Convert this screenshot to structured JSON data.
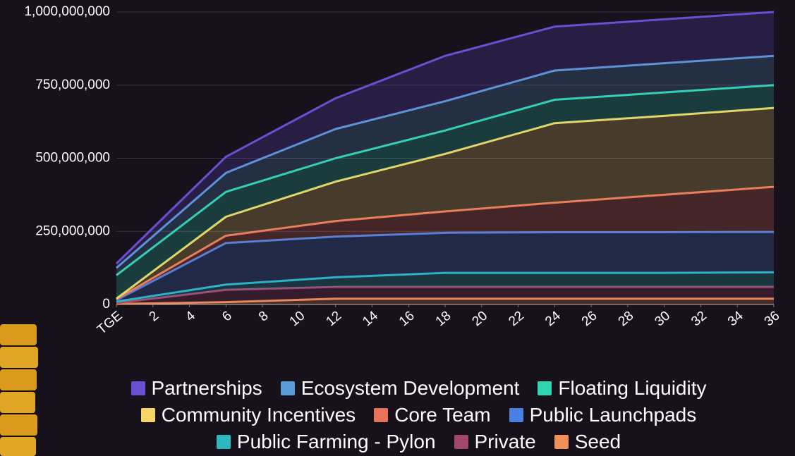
{
  "chart_data": {
    "type": "stacked_area",
    "x": [
      0,
      6,
      12,
      18,
      24,
      30,
      36
    ],
    "xlim": [
      0,
      36
    ],
    "xticks": [
      {
        "value": 0,
        "label": "TGE"
      },
      2,
      4,
      6,
      8,
      10,
      12,
      14,
      16,
      18,
      20,
      22,
      24,
      26,
      28,
      30,
      32,
      34,
      36
    ],
    "ylim": [
      0,
      1000000000
    ],
    "yticks": [
      0,
      {
        "value": 250000000,
        "label": "250,000,000"
      },
      {
        "value": 500000000,
        "label": "500,000,000"
      },
      {
        "value": 750000000,
        "label": "750,000,000"
      },
      {
        "value": 1000000000,
        "label": "1,000,000,000"
      }
    ],
    "grid": true,
    "series": [
      {
        "name": "Partnerships",
        "color": "#6a4fd2",
        "values": [
          15000000,
          55000000,
          105000000,
          155000000,
          150000000,
          150000000,
          150000000
        ]
      },
      {
        "name": "Ecosystem Development",
        "color": "#5b9bd8",
        "values": [
          25000000,
          65000000,
          100000000,
          100000000,
          100000000,
          100000000,
          100000000
        ]
      },
      {
        "name": "Floating Liquidity",
        "color": "#2fd6b2",
        "values": [
          80000000,
          85000000,
          80000000,
          80000000,
          80000000,
          80000000,
          78000000
        ]
      },
      {
        "name": "Community Incentives",
        "color": "#f6d765",
        "values": [
          2000000,
          65000000,
          135000000,
          197000000,
          272000000,
          270000000,
          270000000
        ]
      },
      {
        "name": "Core Team",
        "color": "#e8735a",
        "values": [
          3000000,
          25000000,
          53000000,
          73000000,
          101000000,
          128000000,
          154000000
        ]
      },
      {
        "name": "Public Launchpads",
        "color": "#4a80e2",
        "values": [
          5000000,
          142000000,
          139000000,
          137000000,
          139000000,
          139000000,
          138000000
        ]
      },
      {
        "name": "Public Farming - Pylon",
        "color": "#2cb7c2",
        "values": [
          5000000,
          18000000,
          33000000,
          48000000,
          48000000,
          48000000,
          50000000
        ]
      },
      {
        "name": "Private",
        "color": "#a3466f",
        "values": [
          3000000,
          42000000,
          40000000,
          40000000,
          40000000,
          40000000,
          40000000
        ]
      },
      {
        "name": "Seed",
        "color": "#f1915a",
        "values": [
          2000000,
          8000000,
          20000000,
          20000000,
          20000000,
          20000000,
          20000000
        ]
      }
    ]
  }
}
